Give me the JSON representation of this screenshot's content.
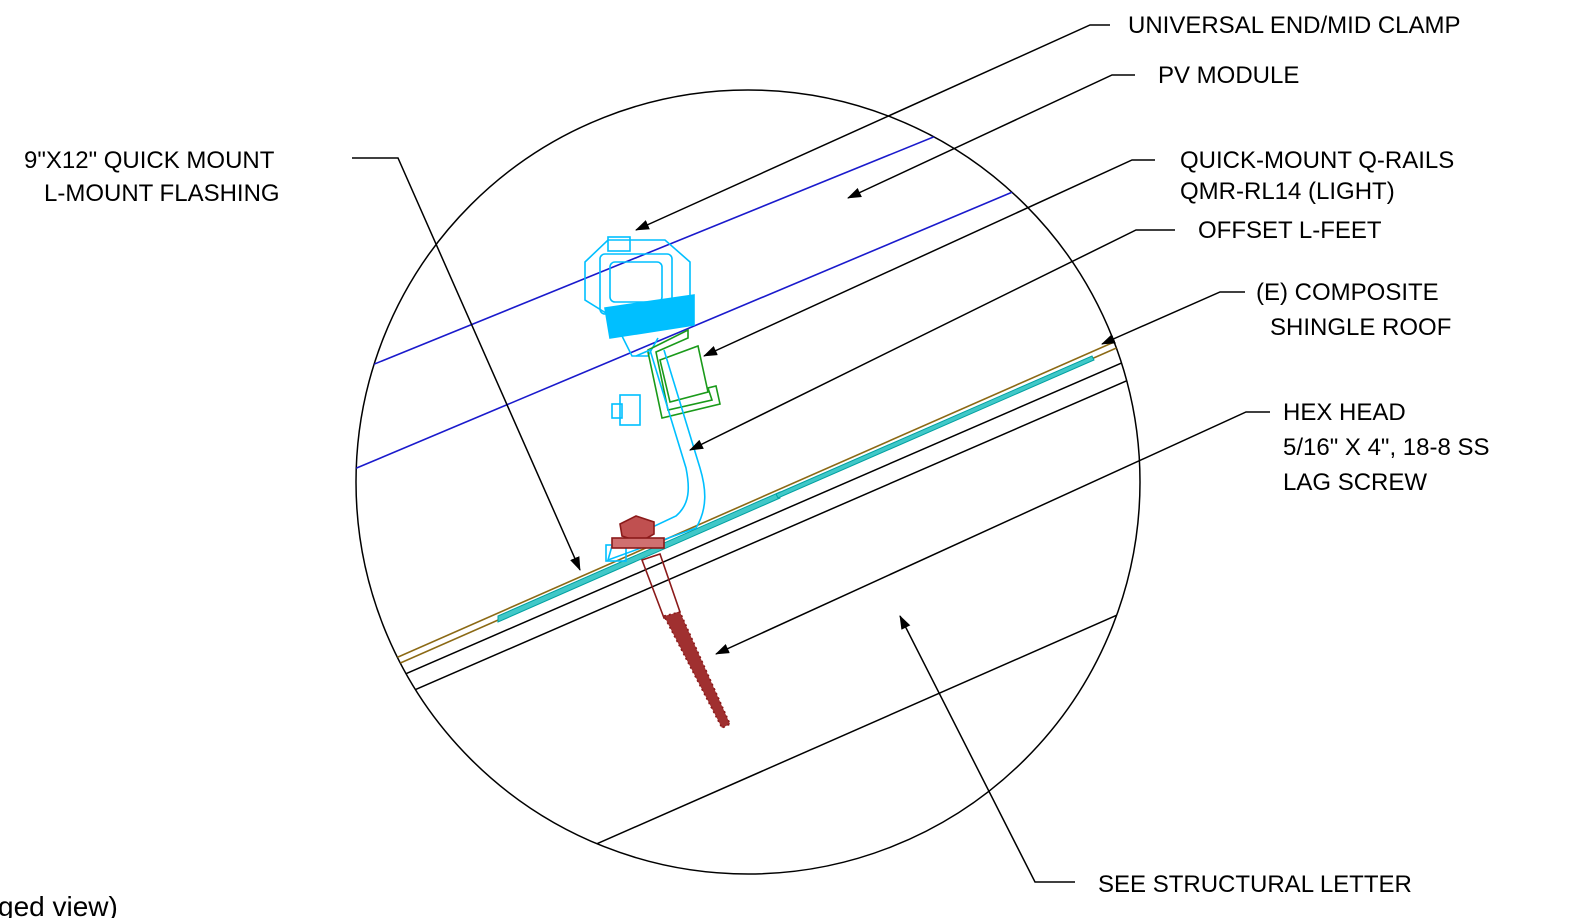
{
  "labels": {
    "clamp": "UNIVERSAL END/MID CLAMP",
    "pv_module": "PV MODULE",
    "flashing_line1": "9\"X12\" QUICK MOUNT",
    "flashing_line2": "L-MOUNT FLASHING",
    "rails_line1": "QUICK-MOUNT Q-RAILS",
    "rails_line2": "QMR-RL14 (LIGHT)",
    "lfeet": "OFFSET L-FEET",
    "roof_line1": "(E) COMPOSITE",
    "roof_line2": "SHINGLE ROOF",
    "lag_line1": "HEX HEAD",
    "lag_line2": "5/16\" X 4\", 18-8 SS",
    "lag_line3": "LAG SCREW",
    "structural": "SEE STRUCTURAL LETTER"
  },
  "caption_partial": "ged view)",
  "colors": {
    "line": "#000000",
    "pv_module_edge": "#1a1acc",
    "mount_hardware": "#00bfff",
    "rail": "#1a9a1a",
    "lag_screw": "#8b1a1a",
    "shingle": "#8b6914",
    "flashing": "#00a0a0"
  }
}
